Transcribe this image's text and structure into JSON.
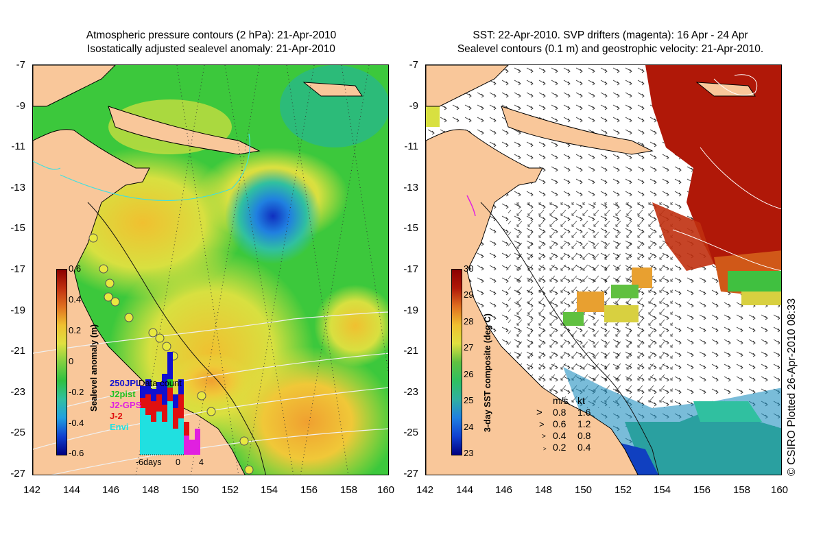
{
  "left_panel": {
    "title_line1": "Atmospheric pressure contours (2 hPa): 21-Apr-2010",
    "title_line2": "Isostatically adjusted sealevel anomaly: 21-Apr-2010",
    "colorbar": {
      "label": "Sealevel anomaly (m)",
      "ticks": [
        "0.6",
        "0.4",
        "0.2",
        "0",
        "-0.2",
        "-0.4",
        "-0.6"
      ]
    },
    "inset": {
      "title": "Data count",
      "y_label": "250",
      "legend": [
        {
          "name": "JPL",
          "color": "#1010d0"
        },
        {
          "name": "J2pist",
          "color": "#20c020"
        },
        {
          "name": "J2-GPS",
          "color": "#e020e0"
        },
        {
          "name": "J-2",
          "color": "#e01010"
        },
        {
          "name": "Envi",
          "color": "#20e0e0"
        }
      ],
      "x_ticks": [
        "-6days",
        "0",
        "4"
      ]
    }
  },
  "right_panel": {
    "title_line1": "SST: 22-Apr-2010. SVP drifters (magenta): 16 Apr - 24 Apr",
    "title_line2": "Sealevel contours (0.1 m) and geostrophic velocity: 21-Apr-2010.",
    "colorbar": {
      "label": "3-day SST composite (deg C)",
      "ticks": [
        "30",
        "29",
        "28",
        "27",
        "26",
        "25",
        "24",
        "23"
      ]
    },
    "velocity_legend": {
      "header_ms": "m/s",
      "header_kt": "kt",
      "rows": [
        {
          "ms": "0.8",
          "kt": "1.6"
        },
        {
          "ms": "0.6",
          "kt": "1.2"
        },
        {
          "ms": "0.4",
          "kt": "0.8"
        },
        {
          "ms": "0.2",
          "kt": "0.4"
        }
      ]
    }
  },
  "axes": {
    "lat_ticks": [
      "-7",
      "-9",
      "-11",
      "-13",
      "-15",
      "-17",
      "-19",
      "-21",
      "-23",
      "-25",
      "-27"
    ],
    "lon_ticks": [
      "142",
      "144",
      "146",
      "148",
      "150",
      "152",
      "154",
      "156",
      "158",
      "160"
    ]
  },
  "credit": "© CSIRO Plotted 26-Apr-2010 08:33",
  "colors": {
    "land": "#f9c79a",
    "ocean_green": "#34c83c",
    "sst_warm": "#b01808"
  }
}
